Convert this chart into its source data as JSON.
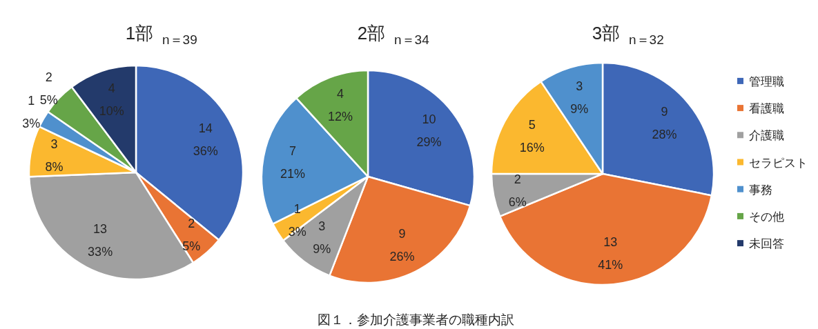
{
  "chart_data": [
    {
      "type": "pie",
      "title": "1部",
      "subtitle": "n＝39",
      "categories": [
        null,
        null,
        null,
        null,
        null,
        null,
        null
      ],
      "values": [
        14,
        2,
        13,
        3,
        1,
        2,
        4
      ],
      "colors": [
        "#3e67b7",
        "#e97434",
        "#a0a0a0",
        "#fbb82f",
        "#4f90cd",
        "#66a548",
        "#233a6b"
      ],
      "value_labels": [
        "14\n36%",
        "2\n5%",
        "13\n33%",
        "3\n8%",
        "1\n3%",
        "2\n5%",
        "4\n10%"
      ]
    },
    {
      "type": "pie",
      "title": "2部",
      "subtitle": "n＝34",
      "categories": [
        null,
        null,
        null,
        null,
        null,
        null
      ],
      "values": [
        10,
        9,
        3,
        1,
        7,
        4
      ],
      "colors": [
        "#3e67b7",
        "#e97434",
        "#a0a0a0",
        "#fbb82f",
        "#4f90cd",
        "#66a548"
      ],
      "value_labels": [
        "10\n29%",
        "9\n26%",
        "3\n9%",
        "1\n3%",
        "7\n21%",
        "4\n12%"
      ],
      "annotations": [
        "図１．参加介護事業者の職種内訳"
      ]
    },
    {
      "type": "pie",
      "title": "3部",
      "subtitle": "n＝32",
      "categories": [
        "管理職",
        "看護職",
        "介護職",
        "セラピスト",
        "事務",
        "その他",
        "未回答"
      ],
      "values": [
        9,
        13,
        2,
        5,
        3,
        0,
        0
      ],
      "colors": [
        "#3e67b7",
        "#e97434",
        "#a0a0a0",
        "#fbb82f",
        "#4f90cd",
        "#66a548",
        "#233a6b"
      ],
      "value_labels": [
        "9\n28%",
        "13\n41%",
        "2\n6%",
        "5\n16%",
        "3\n9%",
        null,
        null
      ],
      "legend": "right"
    }
  ]
}
